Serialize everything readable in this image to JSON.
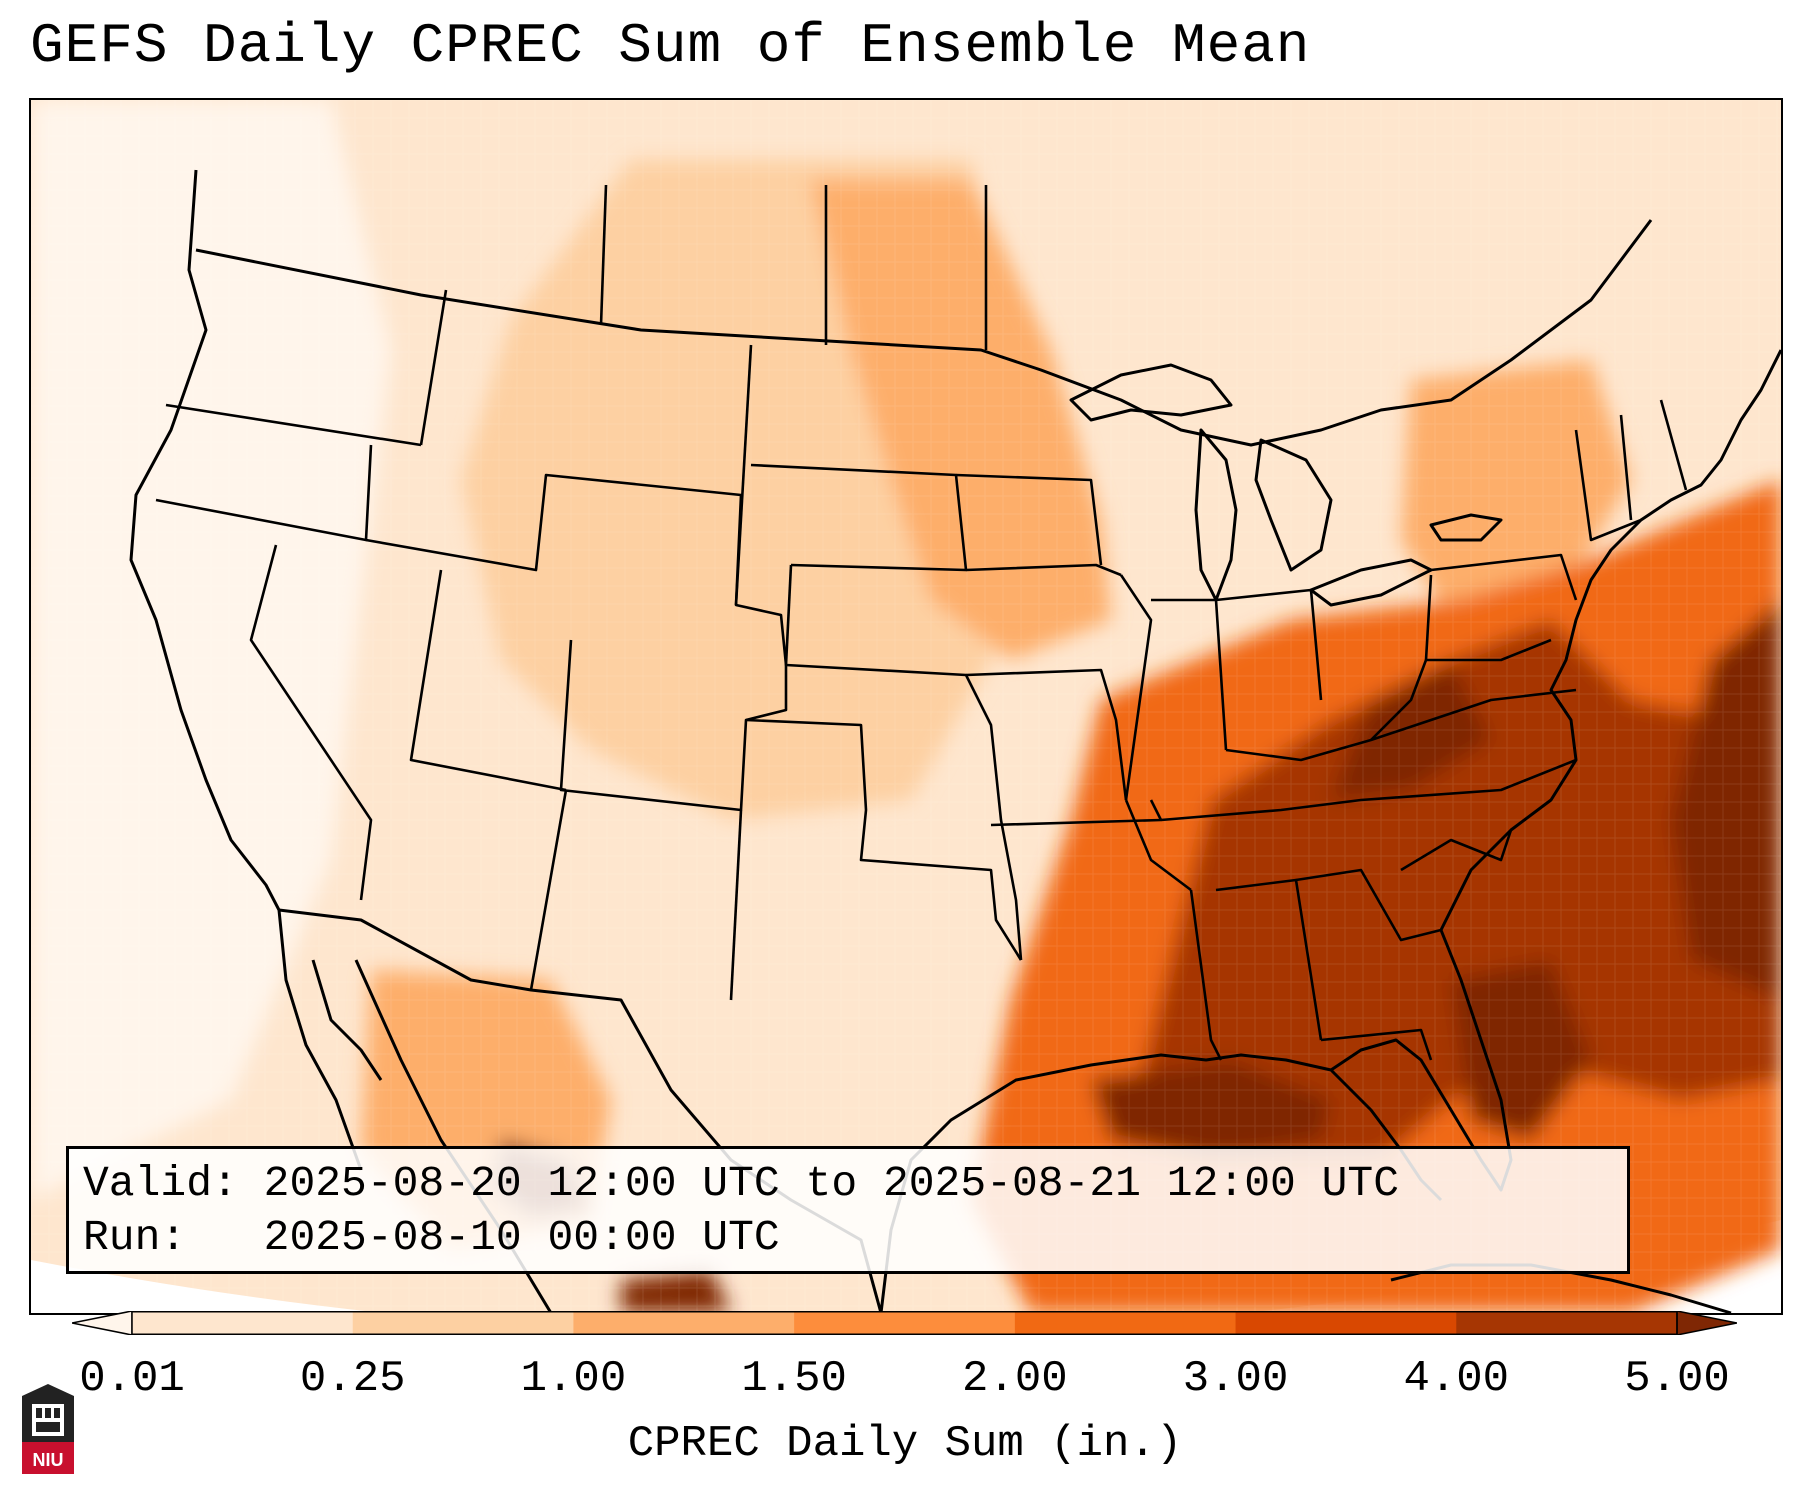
{
  "title": "GEFS Daily CPREC Sum of Ensemble Mean",
  "info": {
    "valid_label": "Valid:",
    "valid_value": "2025-08-20 12:00 UTC to 2025-08-21 12:00 UTC",
    "run_label": "Run:",
    "run_value": "2025-08-10 00:00 UTC"
  },
  "colorbar": {
    "label": "CPREC Daily Sum (in.)",
    "ticks": [
      "0.01",
      "0.25",
      "1.00",
      "1.50",
      "2.00",
      "3.00",
      "4.00",
      "5.00"
    ],
    "colors": [
      "#fff5eb",
      "#fee6ce",
      "#fdd0a2",
      "#fdae6b",
      "#fd8d3c",
      "#f16913",
      "#d94801",
      "#a63603",
      "#7f2704"
    ],
    "extend": "both"
  },
  "map": {
    "projection": "Lambert conformal, CONUS",
    "shading": {
      "light_west": "#fff5eb",
      "plains": "#fdd0a2",
      "midwest": "#fdae6b",
      "southeast": "#f16913",
      "max_band": "#a63603",
      "gulf_core": "#7f2704"
    },
    "outline_color": "#000000"
  },
  "logo": {
    "icon": "niu-seal-icon",
    "text": "NIU",
    "color": "#c8102e"
  }
}
